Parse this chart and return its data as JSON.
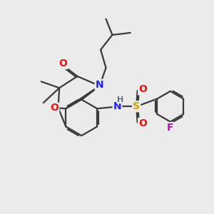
{
  "background_color": "#ebebeb",
  "atom_colors": {
    "C": "#3a3a3a",
    "N": "#2020ee",
    "O": "#ee1010",
    "S": "#c8a000",
    "F": "#cc00cc",
    "H": "#607080"
  },
  "bond_color": "#3a3a3a",
  "bond_width": 1.6,
  "font_size_atom": 10,
  "font_size_small": 8
}
